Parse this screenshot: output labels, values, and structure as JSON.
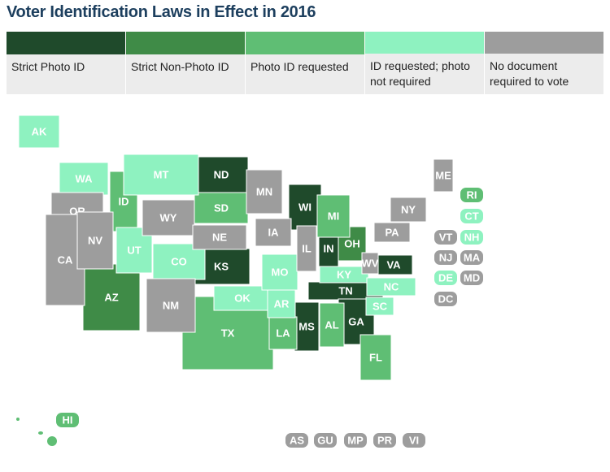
{
  "title": "Voter Identification Laws in Effect in 2016",
  "legend": [
    {
      "label": "Strict Photo ID",
      "color": "#1f4a2b",
      "states": [
        "ND",
        "KS",
        "WI",
        "IN",
        "TN",
        "MS",
        "GA",
        "VA"
      ]
    },
    {
      "label": "Strict Non-Photo ID",
      "color": "#3f8b47",
      "states": [
        "AZ",
        "OH"
      ]
    },
    {
      "label": "Photo ID requested",
      "color": "#5fbe74",
      "states": [
        "ID",
        "SD",
        "MI",
        "TX",
        "LA",
        "AL",
        "FL",
        "RI",
        "HI"
      ]
    },
    {
      "label": "ID requested; photo not required",
      "color": "#8ef2c0",
      "states": [
        "AK",
        "WA",
        "MT",
        "UT",
        "CO",
        "OK",
        "MO",
        "AR",
        "KY",
        "NC",
        "SC",
        "CT",
        "NH",
        "DE"
      ]
    },
    {
      "label": "No document required to vote",
      "color": "#9d9d9d",
      "states": [
        "OR",
        "CA",
        "NV",
        "WY",
        "NE",
        "NM",
        "MN",
        "IA",
        "IL",
        "ME",
        "NY",
        "PA",
        "WV",
        "VT",
        "NJ",
        "MA",
        "MD",
        "DC",
        "AS",
        "GU",
        "MP",
        "PR",
        "VI"
      ]
    }
  ]
}
